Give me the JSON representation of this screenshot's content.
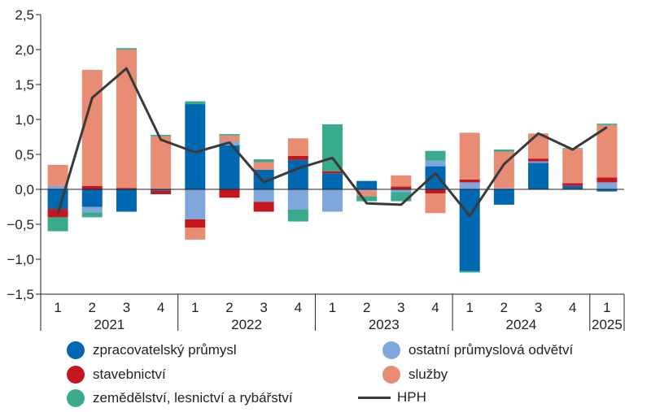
{
  "chart_data": {
    "type": "bar",
    "stacked": true,
    "yticks": [
      "2,5",
      "2,0",
      "1,5",
      "1,0",
      "0,5",
      "0,0",
      "−0,5",
      "−1,0",
      "−1,5"
    ],
    "ylim": [
      -1.5,
      2.5
    ],
    "categories": [
      "1",
      "2",
      "3",
      "4",
      "1",
      "2",
      "3",
      "4",
      "1",
      "2",
      "3",
      "4",
      "1",
      "2",
      "3",
      "4",
      "1"
    ],
    "year_groups": [
      {
        "label": "2021",
        "count": 4
      },
      {
        "label": "2022",
        "count": 4
      },
      {
        "label": "2023",
        "count": 4
      },
      {
        "label": "2024",
        "count": 4
      },
      {
        "label": "2025",
        "count": 1
      }
    ],
    "series": [
      {
        "name": "zpracovatelský průmysl",
        "color": "#0067b1",
        "values": [
          -0.28,
          -0.25,
          -0.32,
          -0.02,
          1.22,
          0.63,
          0.28,
          0.42,
          0.23,
          0.12,
          0.0,
          0.33,
          -1.17,
          -0.22,
          0.38,
          0.05,
          -0.03
        ]
      },
      {
        "name": "ostatní průmyslová odvětví",
        "color": "#7fa7dc",
        "values": [
          0.05,
          -0.08,
          0.0,
          0.0,
          -0.43,
          0.05,
          -0.18,
          -0.29,
          -0.32,
          -0.02,
          -0.04,
          0.08,
          0.1,
          0.02,
          0.02,
          0.0,
          0.1
        ]
      },
      {
        "name": "stavebnictví",
        "color": "#c4161c",
        "values": [
          -0.12,
          0.05,
          0.02,
          -0.05,
          -0.12,
          -0.12,
          -0.14,
          0.06,
          0.03,
          0.0,
          0.04,
          -0.06,
          0.04,
          0.0,
          0.04,
          0.04,
          0.07
        ]
      },
      {
        "name": "služby",
        "color": "#e88c73",
        "values": [
          0.3,
          1.66,
          1.98,
          0.76,
          -0.17,
          0.09,
          0.11,
          0.25,
          0.0,
          -0.08,
          0.16,
          -0.28,
          0.67,
          0.52,
          0.36,
          0.49,
          0.75
        ]
      },
      {
        "name": "zemědělství, lesnictví a rybářství",
        "color": "#3aaa8c",
        "values": [
          -0.2,
          -0.07,
          0.02,
          0.02,
          0.04,
          0.02,
          0.04,
          -0.17,
          0.67,
          -0.07,
          -0.13,
          0.14,
          -0.02,
          0.03,
          0.0,
          0.01,
          0.02
        ]
      }
    ],
    "line": {
      "name": "HPH",
      "color": "#3a3a3a",
      "values": [
        -0.35,
        1.31,
        1.73,
        0.71,
        0.53,
        0.67,
        0.1,
        0.3,
        0.45,
        -0.2,
        -0.22,
        0.23,
        -0.38,
        0.36,
        0.8,
        0.57,
        0.89
      ]
    }
  },
  "legend": [
    {
      "label": "zpracovatelský průmysl",
      "kind": "dot",
      "color": "#0067b1"
    },
    {
      "label": "ostatní průmyslová odvětví",
      "kind": "dot",
      "color": "#7fa7dc"
    },
    {
      "label": "stavebnictví",
      "kind": "dot",
      "color": "#c4161c"
    },
    {
      "label": "služby",
      "kind": "dot",
      "color": "#e88c73"
    },
    {
      "label": "zemědělství, lesnictví a rybářství",
      "kind": "dot",
      "color": "#3aaa8c"
    },
    {
      "label": "HPH",
      "kind": "line",
      "color": "#3a3a3a"
    }
  ]
}
